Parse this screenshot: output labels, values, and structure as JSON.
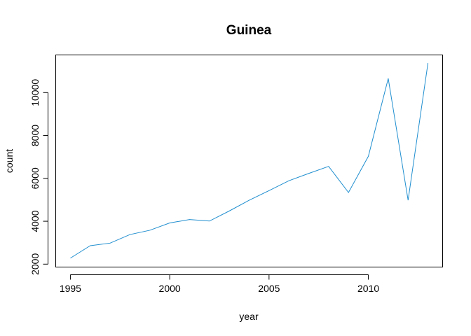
{
  "chart_data": {
    "type": "line",
    "title": "Guinea",
    "xlabel": "year",
    "ylabel": "count",
    "xlim": [
      1994.28,
      2013.72
    ],
    "ylim": [
      1880,
      11740
    ],
    "x_ticks": [
      1995,
      2000,
      2005,
      2010
    ],
    "y_ticks": [
      2000,
      4000,
      6000,
      8000,
      10000
    ],
    "x_tick_labels": [
      "1995",
      "2000",
      "2005",
      "2010"
    ],
    "y_tick_labels": [
      "2000",
      "4000",
      "6000",
      "8000",
      "10000"
    ],
    "grid": false,
    "legend": "none",
    "series": [
      {
        "color": "#1f8ecf",
        "x": [
          1995,
          1996,
          1997,
          1998,
          1999,
          2000,
          2001,
          2002,
          2003,
          2004,
          2005,
          2006,
          2007,
          2008,
          2009,
          2010,
          2011,
          2012,
          2013
        ],
        "y": [
          2280,
          2860,
          2980,
          3380,
          3580,
          3920,
          4080,
          4010,
          4480,
          4980,
          5430,
          5890,
          6230,
          6560,
          5340,
          7030,
          10660,
          4980,
          11380
        ]
      }
    ]
  }
}
